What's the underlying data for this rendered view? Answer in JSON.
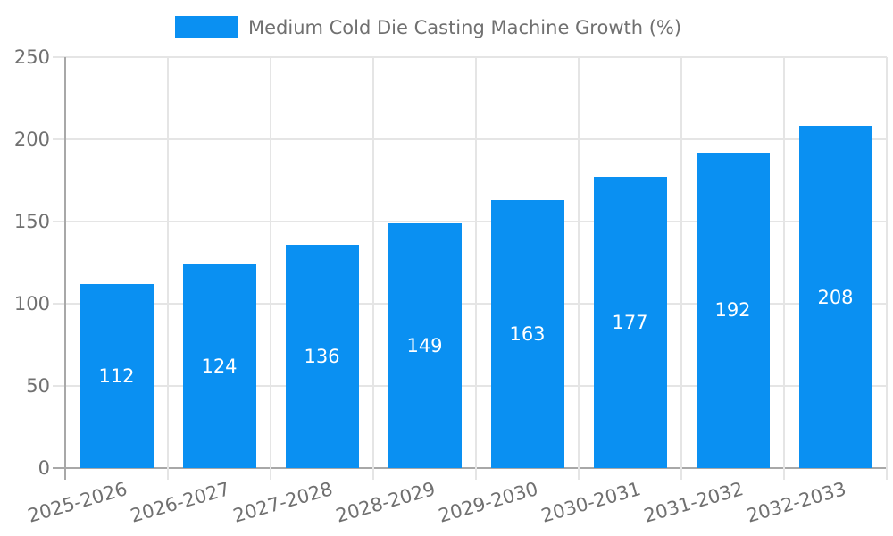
{
  "legend": {
    "label": "Medium Cold Die Casting Machine Growth (%)"
  },
  "colors": {
    "bar": "#0a90f2",
    "axis_text": "#707070",
    "grid": "#e5e5e5",
    "zero_line": "#a8a8a8",
    "value_label": "#ffffff",
    "background": "#ffffff"
  },
  "chart_data": {
    "type": "bar",
    "title": "Medium Cold Die Casting Machine Growth (%)",
    "categories": [
      "2025-2026",
      "2026-2027",
      "2027-2028",
      "2028-2029",
      "2029-2030",
      "2030-2031",
      "2031-2032",
      "2032-2033"
    ],
    "values": [
      112,
      124,
      136,
      149,
      163,
      177,
      192,
      208
    ],
    "xlabel": "",
    "ylabel": "",
    "ylim": [
      0,
      250
    ],
    "yticks": [
      0,
      50,
      100,
      150,
      200,
      250
    ],
    "grid": true,
    "legend_position": "top",
    "value_labels": "inside-center"
  }
}
